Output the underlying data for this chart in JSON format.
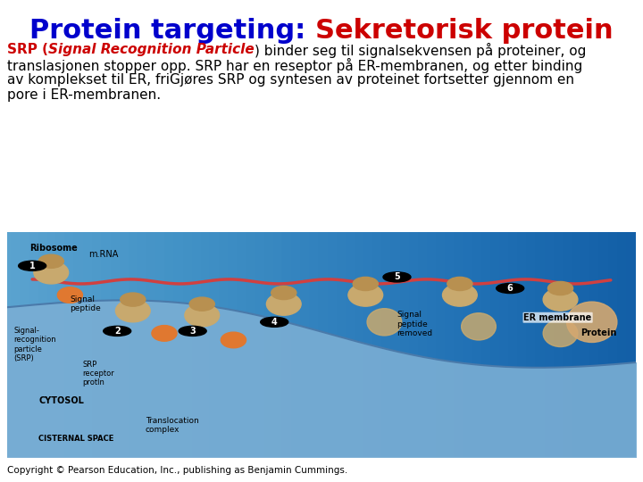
{
  "title_blue": "Protein targeting: ",
  "title_red": "Sekretorisk protein",
  "title_fontsize": 22,
  "body_line1_red_bold": "SRP (",
  "body_line1_red_italic": "Signal Recognition Particle",
  "body_line1_black": ") binder seg til signalsekvensen på proteiner, og",
  "body_line2": "translasjonen stopper opp. SRP har en reseptor på ER-membranen, og etter binding",
  "body_line3": "av komplekset til ER, friGjøres SRP og syntesen av proteinet fortsetter gjennom en",
  "body_line4": "pore i ER-membranen.",
  "body_fontsize": 11,
  "copyright": "Copyright © Pearson Education, Inc., publishing as Benjamin Cummings.",
  "copyright_fontsize": 7.5,
  "bg_color": "#ffffff",
  "blue_color": "#0000cc",
  "red_color": "#cc0000",
  "black_color": "#000000",
  "diagram_bg_light": "#aec6e8",
  "diagram_bg_dark": "#6a9fcb",
  "cytosol_color": "#c8daf0",
  "er_lumen_color": "#8fb8d8",
  "membrane_color": "#7aaed4",
  "ribosome_color": "#c8a96e",
  "srp_color": "#e07830",
  "mrna_color": "#d04040",
  "protein_color": "#c8a96e"
}
